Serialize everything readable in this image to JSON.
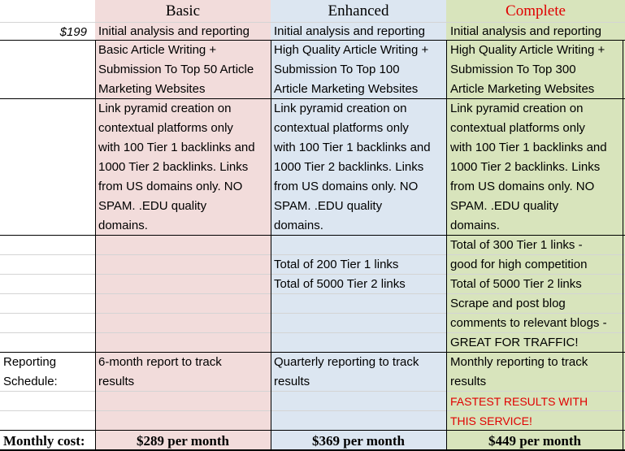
{
  "columns": {
    "basic": "Basic",
    "enhanced": "Enhanced",
    "complete": "Complete"
  },
  "price": "$199",
  "rows": {
    "analysis": {
      "basic": "Initial analysis and reporting",
      "enhanced": "Initial analysis and reporting",
      "complete": "Initial analysis and reporting"
    },
    "writing": {
      "basic": "Basic Article Writing +\nSubmission To Top 50 Article\nMarketing Websites",
      "enhanced": "High Quality Article Writing +\nSubmission To Top 100\nArticle Marketing Websites",
      "complete": "High Quality Article Writing +\nSubmission To Top 300\nArticle Marketing Websites"
    },
    "pyramid": {
      "basic": "Link pyramid creation on\ncontextual platforms only\nwith 100 Tier 1 backlinks and\n1000 Tier 2 backlinks. Links\nfrom US domains only. NO\nSPAM. .EDU quality\ndomains.",
      "enhanced": "Link pyramid creation on\ncontextual platforms only\nwith 100 Tier 1 backlinks and\n1000 Tier 2 backlinks. Links\nfrom US domains only. NO\nSPAM. .EDU quality\ndomains.",
      "complete": "Link pyramid creation on\ncontextual platforms only\nwith 100 Tier 1 backlinks and\n1000 Tier 2 backlinks. Links\nfrom US domains only. NO\nSPAM. .EDU quality\ndomains."
    },
    "extra": {
      "enhanced": "Total of 200 Tier 1 links\nTotal of 5000 Tier 2 links",
      "complete": "Total of 300 Tier 1 links -\ngood for high competition\nTotal of 5000 Tier 2 links\nScrape and post blog\ncomments to relevant blogs -\nGREAT FOR TRAFFIC!"
    },
    "reporting": {
      "label": "Reporting\nSchedule:",
      "basic": "6-month report to track\nresults",
      "enhanced": "Quarterly reporting to track\nresults",
      "complete": "Monthly reporting to track\nresults"
    },
    "note": {
      "complete": "FASTEST RESULTS WITH\nTHIS SERVICE!"
    }
  },
  "cost": {
    "label": "Monthly cost:",
    "basic": "$289 per month",
    "enhanced": "$369 per month",
    "complete": "$449 per month"
  },
  "colors": {
    "basic_bg": "#f2dcdb",
    "enhanced_bg": "#dce6f1",
    "complete_bg": "#d8e4bc",
    "highlight_red": "#e00000"
  }
}
